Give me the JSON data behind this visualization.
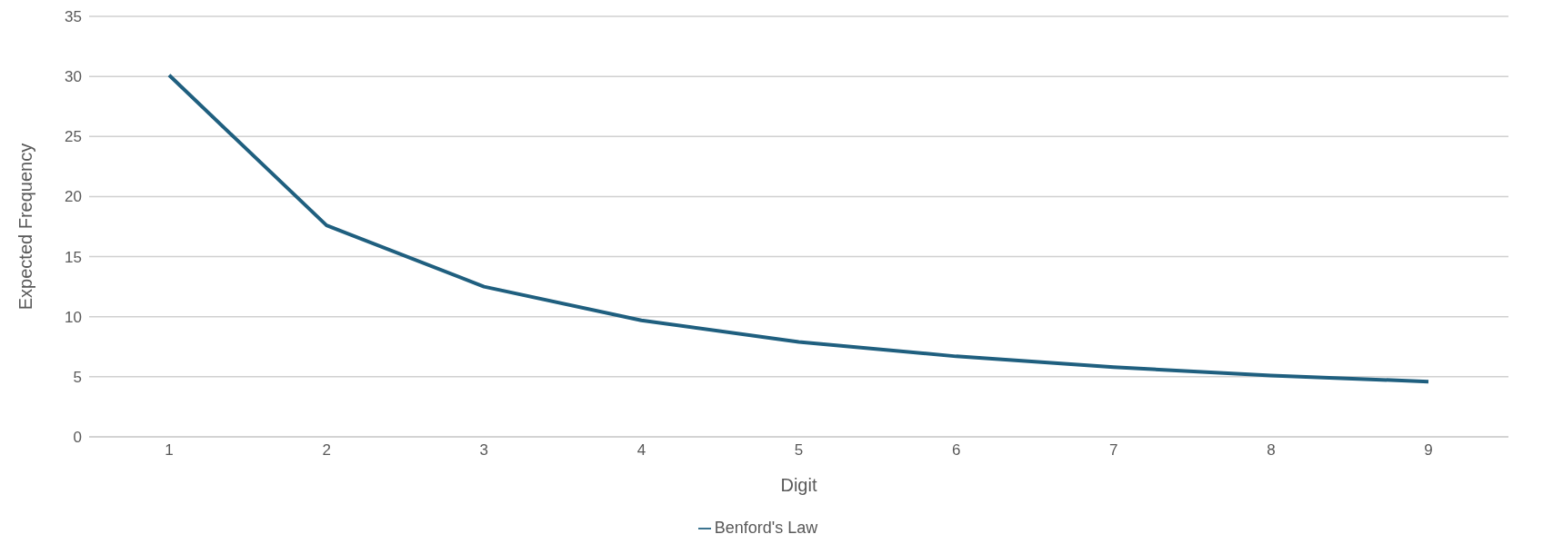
{
  "chart_data": {
    "type": "line",
    "xlabel": "Digit",
    "ylabel": "Expected Frequency",
    "categories": [
      "1",
      "2",
      "3",
      "4",
      "5",
      "6",
      "7",
      "8",
      "9"
    ],
    "series": [
      {
        "name": "Benford's Law",
        "color": "#1f5f7f",
        "values": [
          30.1,
          17.6,
          12.5,
          9.7,
          7.9,
          6.7,
          5.8,
          5.1,
          4.6
        ]
      }
    ],
    "ylim": [
      0,
      35
    ],
    "yticks": [
      0,
      5,
      10,
      15,
      20,
      25,
      30,
      35
    ],
    "grid": "y",
    "legend": "bottom",
    "marker": "none",
    "line_style": "solid"
  }
}
